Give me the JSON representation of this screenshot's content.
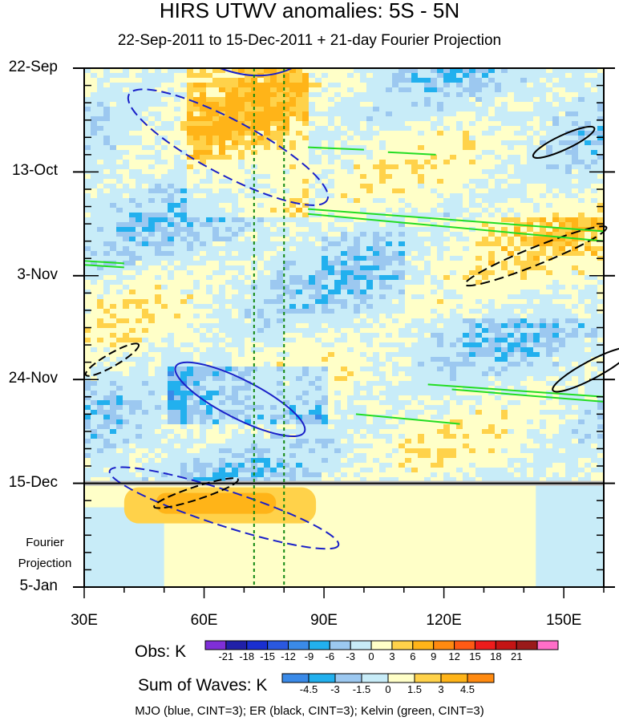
{
  "chart_data": {
    "type": "heatmap",
    "title": "HIRS UTWV anomalies: 5S - 5N",
    "subtitle": "22-Sep-2011 to 15-Dec-2011 + 21-day Fourier Projection",
    "x_ticks": [
      {
        "lon": 30,
        "label": "30E"
      },
      {
        "lon": 60,
        "label": "60E"
      },
      {
        "lon": 90,
        "label": "90E"
      },
      {
        "lon": 120,
        "label": "120E"
      },
      {
        "lon": 150,
        "label": "150E"
      }
    ],
    "xlim": [
      30,
      160
    ],
    "y_ticks": [
      {
        "day": 0,
        "label": "22-Sep"
      },
      {
        "day": 21,
        "label": "13-Oct"
      },
      {
        "day": 42,
        "label": "3-Nov"
      },
      {
        "day": 63,
        "label": "24-Nov"
      },
      {
        "day": 84,
        "label": "15-Dec"
      },
      {
        "day": 105,
        "label": "5-Jan"
      }
    ],
    "ylim_days": [
      0,
      105
    ],
    "projection_start_day": 84,
    "projection_label": [
      "Fourier",
      "Projection"
    ],
    "reference_lines_lon": [
      72.5,
      80
    ],
    "obs_colorbar": {
      "label": "Obs: K",
      "ticks": [
        "-21",
        "-18",
        "-15",
        "-12",
        "-9",
        "-6",
        "-3",
        "0",
        "3",
        "6",
        "9",
        "12",
        "15",
        "18",
        "21"
      ],
      "colors": [
        "#7f2fd8",
        "#2020a8",
        "#1a2fd0",
        "#2a58e0",
        "#3a8ae8",
        "#22b0ee",
        "#9cc8f0",
        "#c8ecf8",
        "#ffffc8",
        "#ffd24a",
        "#ffb418",
        "#ff8a10",
        "#ff5a14",
        "#ee1c1c",
        "#c41414",
        "#9a1a1a",
        "#ff6ec8"
      ]
    },
    "waves_colorbar": {
      "label": "Sum of Waves: K",
      "ticks": [
        "-4.5",
        "-3",
        "-1.5",
        "0",
        "1.5",
        "3",
        "4.5"
      ],
      "colors": [
        "#3a8ae8",
        "#22b0ee",
        "#9cc8f0",
        "#c8ecf8",
        "#ffffc8",
        "#ffd24a",
        "#ffb418",
        "#ff8a10"
      ]
    },
    "footer": "MJO (blue, CINT=3); ER (black, CINT=3); Kelvin (green, CINT=3)",
    "contour_colors": {
      "MJO": "#1a20c8",
      "ER": "#000000",
      "Kelvin": "#22dd22"
    }
  }
}
